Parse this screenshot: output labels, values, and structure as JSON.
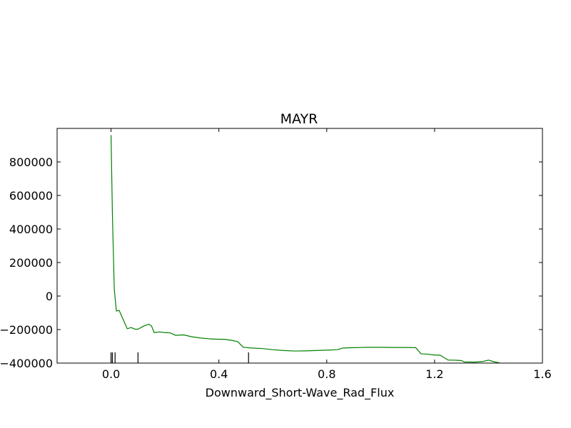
{
  "chart_data": {
    "type": "line",
    "title": "MAYR",
    "xlabel": "Downward_Short-Wave_Rad_Flux",
    "ylabel": "",
    "xlim": [
      -0.2,
      1.6
    ],
    "ylim": [
      -400000,
      1000000
    ],
    "xticks": [
      0.0,
      0.4,
      0.8,
      1.2,
      1.6
    ],
    "xtick_labels": [
      "0.0",
      "0.4",
      "0.8",
      "1.2",
      "1.6"
    ],
    "yticks": [
      -400000,
      -200000,
      0,
      200000,
      400000,
      600000,
      800000
    ],
    "ytick_labels": [
      "−400000",
      "−200000",
      "0",
      "200000",
      "400000",
      "600000",
      "800000"
    ],
    "grid": false,
    "series": [
      {
        "color": "#008000",
        "x": [
          0.0,
          0.005,
          0.012,
          0.02,
          0.03,
          0.045,
          0.06,
          0.075,
          0.09,
          0.1,
          0.12,
          0.14,
          0.15,
          0.16,
          0.18,
          0.2,
          0.22,
          0.24,
          0.25,
          0.27,
          0.3,
          0.33,
          0.37,
          0.4,
          0.42,
          0.45,
          0.47,
          0.49,
          0.52,
          0.56,
          0.6,
          0.64,
          0.68,
          0.72,
          0.76,
          0.8,
          0.84,
          0.86,
          0.9,
          0.95,
          1.0,
          1.05,
          1.1,
          1.13,
          1.15,
          1.17,
          1.2,
          1.22,
          1.25,
          1.28,
          1.3,
          1.31,
          1.35,
          1.38,
          1.4,
          1.42,
          1.44
        ],
        "y": [
          960000,
          500000,
          40000,
          -90000,
          -85000,
          -140000,
          -195000,
          -188000,
          -198000,
          -198000,
          -180000,
          -168000,
          -178000,
          -218000,
          -214000,
          -218000,
          -220000,
          -235000,
          -233000,
          -232000,
          -243000,
          -250000,
          -256000,
          -258000,
          -258000,
          -265000,
          -272000,
          -305000,
          -310000,
          -313000,
          -320000,
          -325000,
          -328000,
          -327000,
          -325000,
          -323000,
          -320000,
          -310000,
          -308000,
          -306000,
          -306000,
          -307000,
          -307000,
          -308000,
          -345000,
          -346000,
          -352000,
          -352000,
          -382000,
          -383000,
          -385000,
          -393000,
          -394000,
          -390000,
          -382000,
          -392000,
          -398000
        ]
      }
    ],
    "rug_x": [
      0.0,
      0.005,
      0.015,
      0.1,
      0.51
    ]
  }
}
